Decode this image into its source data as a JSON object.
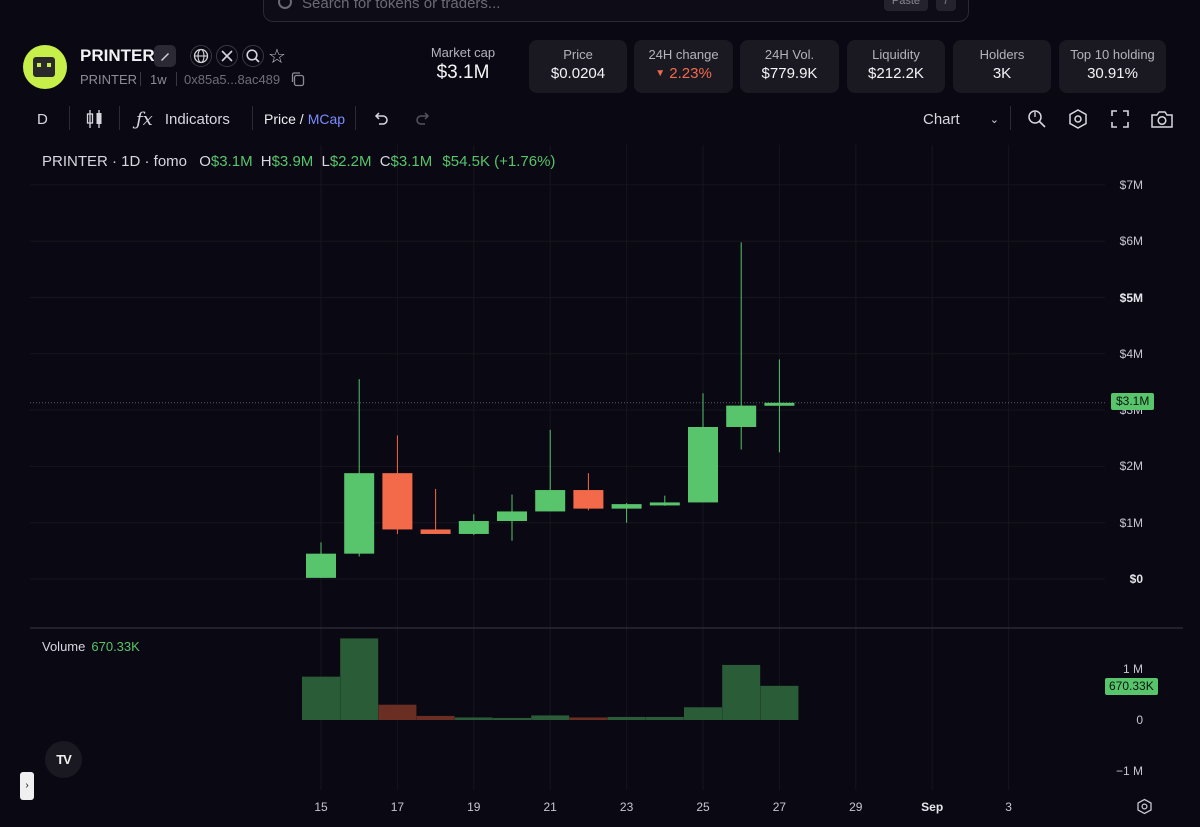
{
  "search": {
    "placeholder": "Search for tokens or traders...",
    "key1": "Paste",
    "key2": "/"
  },
  "token": {
    "name": "PRINTER",
    "symbol": "PRINTER",
    "age": "1w",
    "address": "0x85a5...8ac489"
  },
  "stats": {
    "market_cap": {
      "label": "Market cap",
      "value": "$3.1M"
    },
    "price": {
      "label": "Price",
      "value": "$0.0204"
    },
    "change": {
      "label": "24H change",
      "value": "2.23%",
      "direction": "down"
    },
    "volume": {
      "label": "24H Vol.",
      "value": "$779.9K"
    },
    "liquidity": {
      "label": "Liquidity",
      "value": "$212.2K"
    },
    "holders": {
      "label": "Holders",
      "value": "3K"
    },
    "top10": {
      "label": "Top 10 holding",
      "value": "30.91%"
    }
  },
  "toolbar": {
    "interval": "D",
    "indicators": "Indicators",
    "price_label": "Price /",
    "mcap_label": "MCap",
    "chart_select": "Chart"
  },
  "legend": {
    "title": "PRINTER · 1D · fomo",
    "o_label": "O",
    "o_val": "$3.1M",
    "h_label": "H",
    "h_val": "$3.9M",
    "l_label": "L",
    "l_val": "$2.2M",
    "c_label": "C",
    "c_val": "$3.1M",
    "change": "$54.5K (+1.76%)"
  },
  "volume_legend": {
    "label": "Volume",
    "value": "670.33K"
  },
  "price_tag": "$3.1M",
  "volume_tag": "670.33K",
  "y_ticks": [
    "$7M",
    "$6M",
    "$5M",
    "$4M",
    "$3M",
    "$2M",
    "$1M",
    "$0"
  ],
  "vol_ticks": [
    "1 M",
    "0",
    "−1 M"
  ],
  "x_ticks": [
    "15",
    "17",
    "19",
    "21",
    "23",
    "25",
    "27",
    "29",
    "Sep",
    "3"
  ],
  "colors": {
    "up": "#58c46b",
    "down": "#f26a4a",
    "vol_up": "#2a5c38",
    "vol_down": "#6a2e22"
  },
  "chart_data": {
    "type": "candlestick",
    "unit": "USD millions (market cap)",
    "dates": [
      "Aug 15",
      "Aug 16",
      "Aug 17",
      "Aug 18",
      "Aug 19",
      "Aug 20",
      "Aug 21",
      "Aug 22",
      "Aug 23",
      "Aug 24",
      "Aug 25",
      "Aug 26",
      "Aug 27"
    ],
    "candles": [
      {
        "o": 0.02,
        "h": 0.65,
        "l": 0.02,
        "c": 0.45
      },
      {
        "o": 0.45,
        "h": 3.55,
        "l": 0.4,
        "c": 1.88
      },
      {
        "o": 1.88,
        "h": 2.55,
        "l": 0.8,
        "c": 0.88
      },
      {
        "o": 0.88,
        "h": 1.6,
        "l": 0.8,
        "c": 0.8
      },
      {
        "o": 0.8,
        "h": 1.15,
        "l": 0.78,
        "c": 1.03
      },
      {
        "o": 1.03,
        "h": 1.5,
        "l": 0.68,
        "c": 1.2
      },
      {
        "o": 1.2,
        "h": 2.65,
        "l": 1.2,
        "c": 1.58
      },
      {
        "o": 1.58,
        "h": 1.88,
        "l": 1.22,
        "c": 1.25
      },
      {
        "o": 1.25,
        "h": 1.35,
        "l": 1.0,
        "c": 1.33
      },
      {
        "o": 1.33,
        "h": 1.48,
        "l": 1.3,
        "c": 1.36
      },
      {
        "o": 1.36,
        "h": 3.3,
        "l": 1.36,
        "c": 2.7
      },
      {
        "o": 2.7,
        "h": 5.98,
        "l": 2.3,
        "c": 3.08
      },
      {
        "o": 3.08,
        "h": 3.9,
        "l": 2.25,
        "c": 3.13
      }
    ],
    "volume": [
      0.85,
      1.6,
      0.3,
      0.08,
      0.05,
      0.04,
      0.09,
      0.05,
      0.06,
      0.06,
      0.25,
      1.08,
      0.67
    ],
    "ylim": [
      0,
      7
    ],
    "vol_ylim": [
      -1,
      1
    ]
  }
}
